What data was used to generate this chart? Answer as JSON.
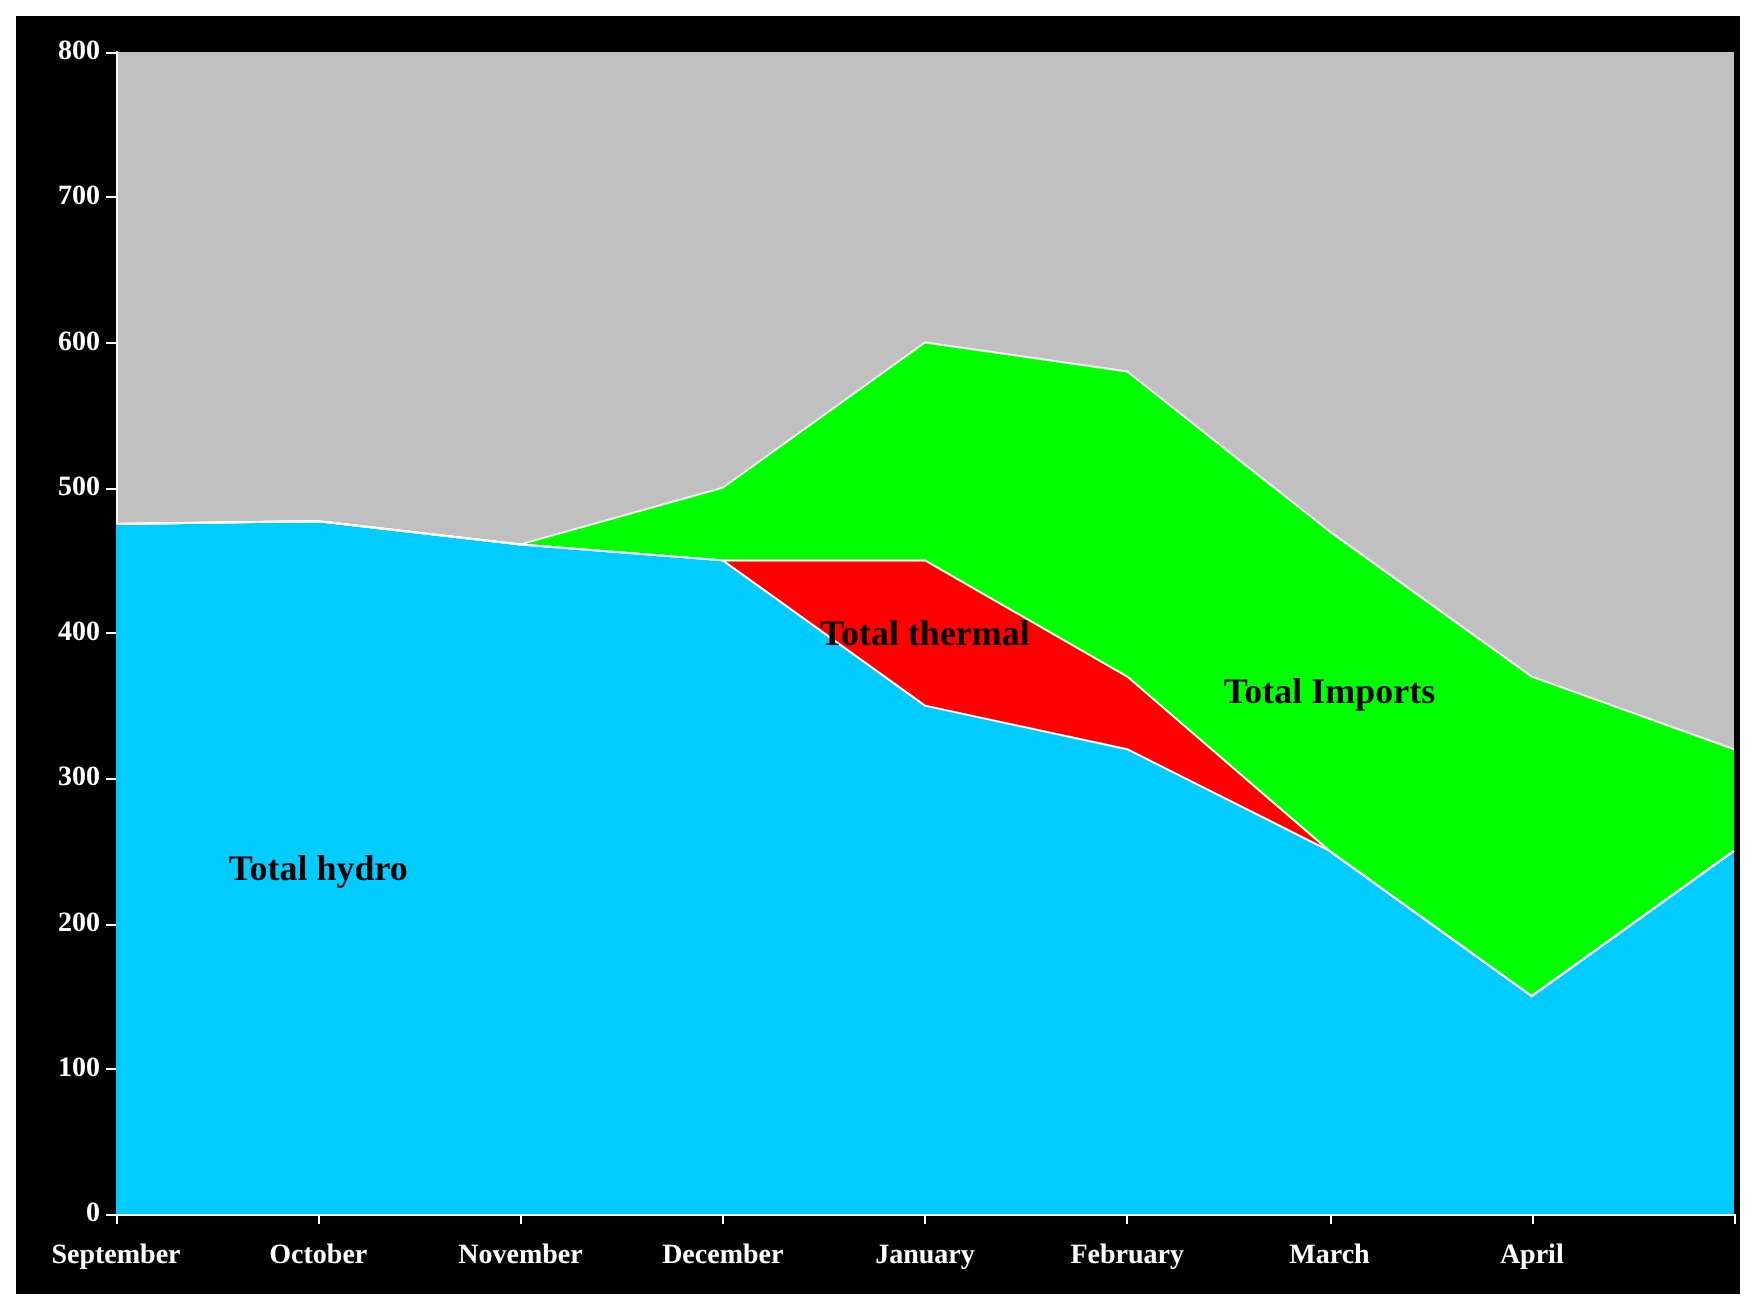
{
  "chart_data": {
    "type": "area",
    "stacked": true,
    "categories": [
      "September",
      "October",
      "November",
      "December",
      "January",
      "February",
      "March",
      "April",
      null
    ],
    "series": [
      {
        "name": "Total hydro",
        "color": "#00ccff",
        "values": [
          475,
          477,
          461,
          450,
          350,
          320,
          250,
          150,
          250
        ]
      },
      {
        "name": "Total thermal",
        "color": "#ff0000",
        "values": [
          0,
          0,
          0,
          0,
          100,
          50,
          0,
          0,
          0
        ]
      },
      {
        "name": "Total Imports",
        "color": "#00ff00",
        "values": [
          0,
          0,
          0,
          50,
          150,
          210,
          220,
          220,
          70
        ]
      }
    ],
    "ylim": [
      0,
      800
    ],
    "yticks": [
      0,
      100,
      200,
      300,
      400,
      500,
      600,
      700,
      800
    ],
    "grid": false,
    "legend": false
  }
}
